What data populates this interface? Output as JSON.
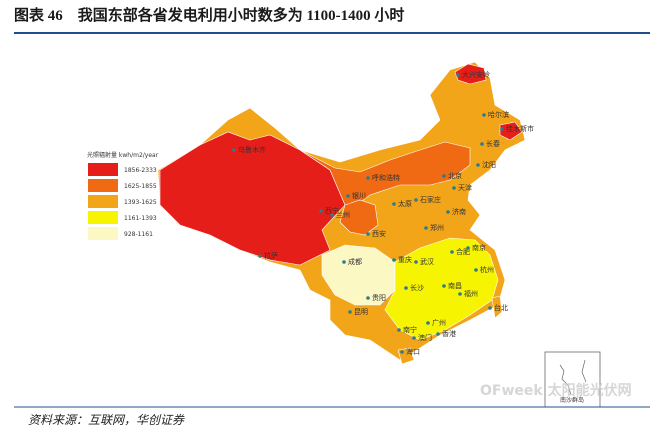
{
  "header": {
    "title": "图表 46　我国东部各省发电利用小时数多为 1100-1400 小时"
  },
  "legend": {
    "title": "光照辐射量 kwh/m2/year",
    "items": [
      {
        "label": "1856-2333",
        "color": "#e61e1a"
      },
      {
        "label": "1625-1855",
        "color": "#ef6a12"
      },
      {
        "label": "1393-1625",
        "color": "#f3a51a"
      },
      {
        "label": "1161-1393",
        "color": "#f6f400"
      },
      {
        "label": "928-1161",
        "color": "#fbf8c4"
      }
    ]
  },
  "cities": [
    "大兴安岭",
    "哈尔滨",
    "佳木斯市",
    "长春",
    "沈阳",
    "北京",
    "天津",
    "呼和浩特",
    "石家庄",
    "太原",
    "济南",
    "银川",
    "兰州",
    "西宁",
    "乌鲁木齐",
    "拉萨",
    "西安",
    "郑州",
    "成都",
    "重庆",
    "武汉",
    "合肥",
    "南京",
    "杭州",
    "长沙",
    "南昌",
    "福州",
    "贵阳",
    "昆明",
    "广州",
    "南宁",
    "海口",
    "台北",
    "香港",
    "澳门"
  ],
  "inset": "南沙群岛",
  "watermark": "OFweek 太阳能光伏网",
  "source": "资料来源：互联网，华创证券"
}
